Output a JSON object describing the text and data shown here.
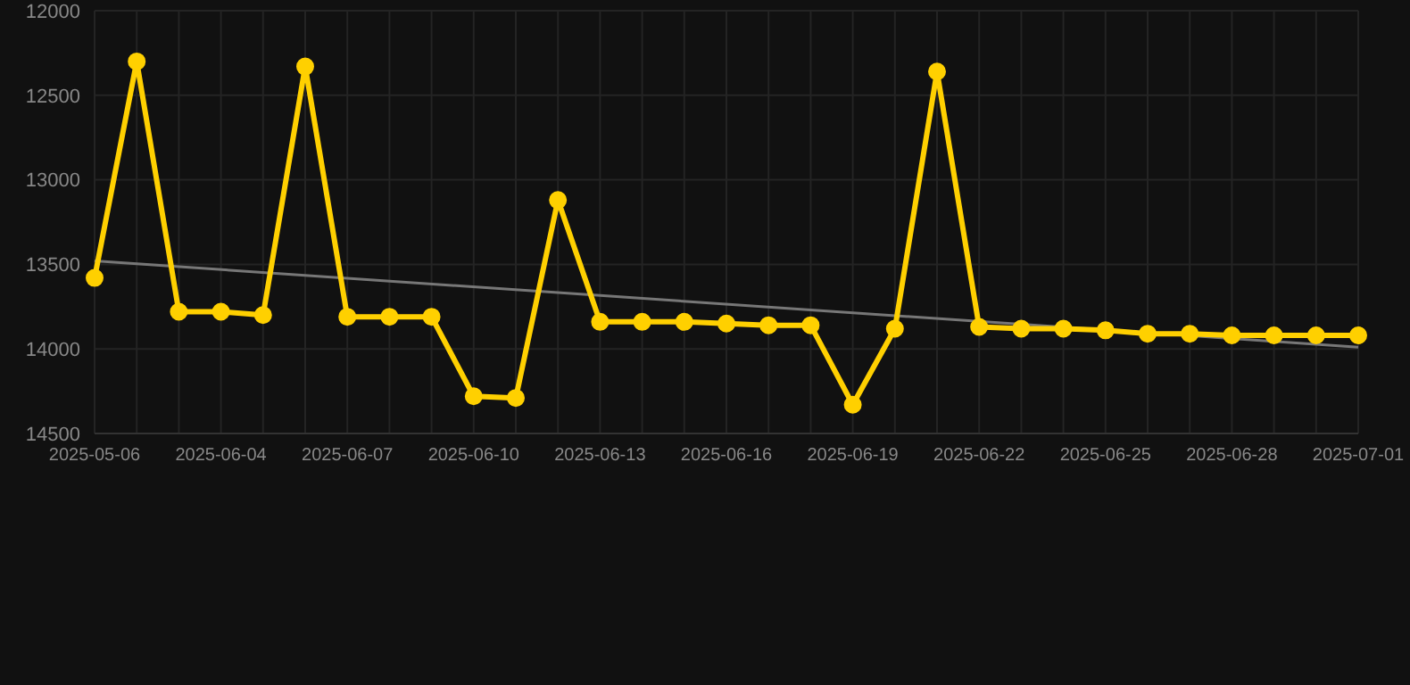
{
  "chart_data": {
    "type": "line",
    "categories": [
      "2025-05-06",
      null,
      null,
      "2025-06-04",
      null,
      null,
      "2025-06-07",
      null,
      null,
      "2025-06-10",
      null,
      null,
      "2025-06-13",
      null,
      null,
      "2025-06-16",
      null,
      null,
      "2025-06-19",
      null,
      null,
      "2025-06-22",
      null,
      null,
      "2025-06-25",
      null,
      null,
      "2025-06-28",
      null,
      null,
      "2025-07-01"
    ],
    "series": [
      {
        "color": "#ffd000",
        "marker": "circle",
        "values": [
          13580,
          12300,
          13780,
          13780,
          13800,
          12330,
          13810,
          13810,
          13810,
          14280,
          14290,
          13120,
          13840,
          13840,
          13840,
          13850,
          13860,
          13860,
          14330,
          13880,
          12360,
          13870,
          13880,
          13880,
          13890,
          13910,
          13910,
          13920,
          13920,
          13920,
          13920
        ]
      },
      {
        "color": "#777777",
        "marker": "none",
        "values": [
          13480,
          null,
          null,
          null,
          null,
          null,
          null,
          null,
          null,
          null,
          null,
          null,
          null,
          null,
          null,
          null,
          null,
          null,
          null,
          null,
          null,
          null,
          null,
          null,
          null,
          null,
          null,
          null,
          null,
          null,
          13990
        ]
      }
    ],
    "ylim": [
      14500,
      12000
    ],
    "yticks": [
      12000,
      12500,
      13000,
      13500,
      14000,
      14500
    ],
    "grid": true,
    "line_style": "solid"
  }
}
